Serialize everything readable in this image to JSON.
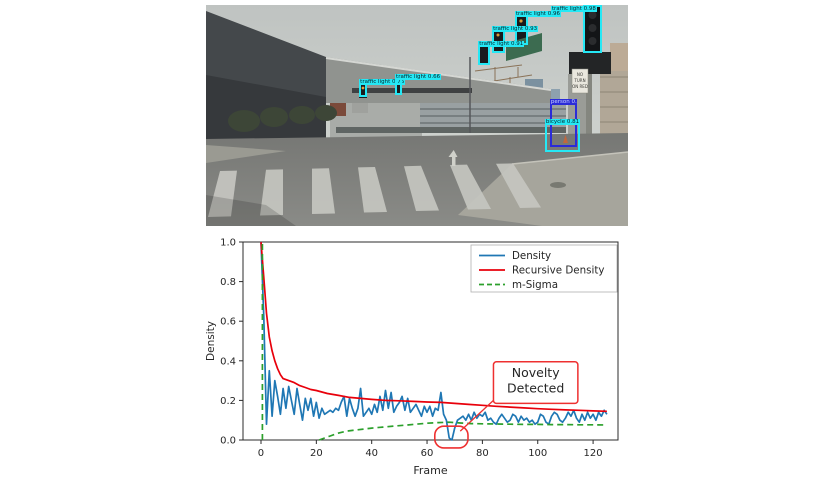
{
  "figure": {
    "background": "#ffffff"
  },
  "photo": {
    "scene": "urban intersection with crosswalk, buildings, construction cranes and traffic-signal pole",
    "sign_lines": [
      "NO",
      "TURN",
      "ON RED"
    ],
    "colors": {
      "detection_cyan": "#25e8f5",
      "detection_blue": "#2b2bd8",
      "sky_top": "#bfc3c1",
      "sky_bottom": "#ced2ce",
      "road": "#7c7d7a"
    },
    "detections": [
      {
        "id": "traffic-light-1",
        "label": "traffic light 0.98",
        "color": "#25e8f5",
        "l": 89.3,
        "t": 0.0,
        "w": 4.5,
        "h": 21.7,
        "inside": true,
        "dx": -32
      },
      {
        "id": "traffic-light-2",
        "label": "traffic light 0.96",
        "color": "#25e8f5",
        "l": 73.2,
        "t": 4.5,
        "w": 3.1,
        "h": 13.6
      },
      {
        "id": "traffic-light-3",
        "label": "traffic light 0.93",
        "color": "#25e8f5",
        "l": 67.8,
        "t": 11.3,
        "w": 3.1,
        "h": 10.4
      },
      {
        "id": "traffic-light-4",
        "label": "traffic light 0.91",
        "color": "#25e8f5",
        "l": 64.5,
        "t": 18.1,
        "w": 2.8,
        "h": 9.0
      },
      {
        "id": "traffic-light-5",
        "label": "traffic light 0.76",
        "color": "#25e8f5",
        "l": 36.3,
        "t": 35.3,
        "w": 1.9,
        "h": 6.3
      },
      {
        "id": "traffic-light-6",
        "label": "traffic light 0.66",
        "color": "#25e8f5",
        "l": 44.8,
        "t": 33.0,
        "w": 1.7,
        "h": 7.7
      },
      {
        "id": "person-1",
        "label": "person 0.87",
        "color": "#2b2bd8",
        "l": 81.5,
        "t": 44.3,
        "w": 6.4,
        "h": 19.9,
        "filled": true
      },
      {
        "id": "bicycle-1",
        "label": "bicycle 0.81",
        "color": "#25e8f5",
        "l": 80.3,
        "t": 53.4,
        "w": 8.3,
        "h": 13.1
      }
    ]
  },
  "chart_data": {
    "type": "line",
    "title": "",
    "xlabel": "Frame",
    "ylabel": "Density",
    "xlim": [
      -6.5,
      129
    ],
    "ylim": [
      0.0,
      1.0
    ],
    "xticks": [
      0,
      20,
      40,
      60,
      80,
      100,
      120
    ],
    "yticks": [
      0.0,
      0.2,
      0.4,
      0.6,
      0.8,
      1.0
    ],
    "grid": false,
    "legend": {
      "position": "upper right",
      "entries": [
        "Density",
        "Recursive Density",
        "m-Sigma"
      ]
    },
    "series": [
      {
        "name": "Density",
        "color": "#1f77b4",
        "style": "solid",
        "x_start": 0,
        "x_step": 1,
        "values": [
          1.0,
          0.62,
          0.08,
          0.35,
          0.12,
          0.3,
          0.22,
          0.13,
          0.26,
          0.16,
          0.27,
          0.2,
          0.13,
          0.26,
          0.18,
          0.1,
          0.21,
          0.15,
          0.21,
          0.12,
          0.19,
          0.11,
          0.16,
          0.13,
          0.14,
          0.15,
          0.14,
          0.16,
          0.15,
          0.19,
          0.22,
          0.12,
          0.21,
          0.16,
          0.12,
          0.16,
          0.26,
          0.12,
          0.14,
          0.16,
          0.13,
          0.18,
          0.14,
          0.22,
          0.15,
          0.25,
          0.16,
          0.24,
          0.14,
          0.17,
          0.19,
          0.22,
          0.15,
          0.21,
          0.14,
          0.16,
          0.18,
          0.15,
          0.12,
          0.17,
          0.14,
          0.17,
          0.12,
          0.16,
          0.15,
          0.24,
          0.13,
          0.1,
          0.01,
          0.0,
          0.06,
          0.1,
          0.11,
          0.12,
          0.1,
          0.13,
          0.1,
          0.14,
          0.11,
          0.13,
          0.12,
          0.14,
          0.1,
          0.11,
          0.09,
          0.08,
          0.11,
          0.13,
          0.11,
          0.09,
          0.1,
          0.13,
          0.12,
          0.09,
          0.12,
          0.1,
          0.11,
          0.09,
          0.1,
          0.08,
          0.09,
          0.13,
          0.12,
          0.09,
          0.08,
          0.12,
          0.14,
          0.13,
          0.1,
          0.09,
          0.11,
          0.14,
          0.12,
          0.15,
          0.11,
          0.09,
          0.13,
          0.1,
          0.14,
          0.11,
          0.13,
          0.1,
          0.14,
          0.12,
          0.15,
          0.13
        ]
      },
      {
        "name": "Recursive Density",
        "color": "#e8000b",
        "style": "solid",
        "points": [
          [
            0,
            1.0
          ],
          [
            1,
            0.82
          ],
          [
            2,
            0.64
          ],
          [
            3,
            0.52
          ],
          [
            4,
            0.45
          ],
          [
            5,
            0.4
          ],
          [
            6,
            0.36
          ],
          [
            7,
            0.33
          ],
          [
            8,
            0.31
          ],
          [
            10,
            0.3
          ],
          [
            12,
            0.29
          ],
          [
            14,
            0.275
          ],
          [
            16,
            0.265
          ],
          [
            18,
            0.255
          ],
          [
            20,
            0.25
          ],
          [
            24,
            0.235
          ],
          [
            28,
            0.225
          ],
          [
            32,
            0.215
          ],
          [
            36,
            0.21
          ],
          [
            40,
            0.205
          ],
          [
            45,
            0.2
          ],
          [
            50,
            0.198
          ],
          [
            55,
            0.195
          ],
          [
            60,
            0.192
          ],
          [
            65,
            0.19
          ],
          [
            70,
            0.185
          ],
          [
            75,
            0.18
          ],
          [
            80,
            0.175
          ],
          [
            85,
            0.17
          ],
          [
            90,
            0.166
          ],
          [
            95,
            0.162
          ],
          [
            100,
            0.158
          ],
          [
            105,
            0.155
          ],
          [
            110,
            0.152
          ],
          [
            115,
            0.15
          ],
          [
            120,
            0.147
          ],
          [
            125,
            0.145
          ]
        ]
      },
      {
        "name": "m-Sigma",
        "color": "#2ca02c",
        "style": "dashed",
        "segments": [
          [
            [
              0.5,
              0.0
            ],
            [
              0.5,
              1.0
            ]
          ],
          [
            [
              21,
              0.0
            ],
            [
              23,
              0.01
            ],
            [
              25,
              0.02
            ],
            [
              28,
              0.035
            ],
            [
              31,
              0.045
            ],
            [
              34,
              0.05
            ],
            [
              37,
              0.055
            ],
            [
              40,
              0.06
            ],
            [
              44,
              0.065
            ],
            [
              48,
              0.07
            ],
            [
              52,
              0.075
            ],
            [
              56,
              0.08
            ],
            [
              60,
              0.085
            ],
            [
              64,
              0.088
            ],
            [
              68,
              0.09
            ],
            [
              72,
              0.086
            ],
            [
              76,
              0.083
            ],
            [
              80,
              0.082
            ],
            [
              85,
              0.081
            ],
            [
              90,
              0.08
            ],
            [
              95,
              0.079
            ],
            [
              100,
              0.079
            ],
            [
              105,
              0.078
            ],
            [
              110,
              0.078
            ],
            [
              115,
              0.077
            ],
            [
              120,
              0.077
            ],
            [
              125,
              0.076
            ]
          ]
        ]
      }
    ],
    "annotation": {
      "lines": [
        "Novelty",
        "Detected"
      ],
      "color": "#ee3030",
      "box_frames": [
        84,
        114.5
      ],
      "box_density": [
        0.185,
        0.395
      ],
      "ellipse_center": [
        68.8,
        0.015
      ],
      "ellipse_rx_frames": 6.0,
      "ellipse_ry_density": 0.055,
      "leader_from": [
        84,
        0.2
      ],
      "leader_to": [
        72,
        0.045
      ]
    }
  }
}
